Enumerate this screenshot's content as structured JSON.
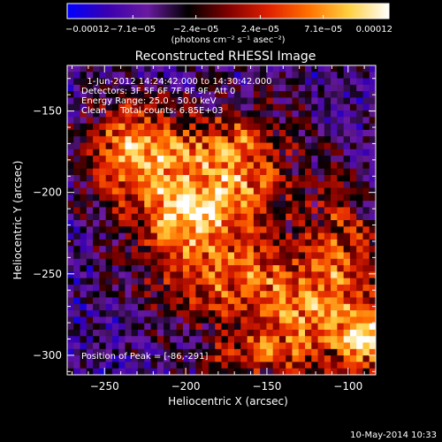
{
  "chart_data": {
    "type": "heatmap",
    "title": "Reconstructed RHESSI Image",
    "xlabel": "Heliocentric X (arcsec)",
    "ylabel": "Heliocentric Y (arcsec)",
    "xlim": [
      -273,
      -83
    ],
    "ylim": [
      -312,
      -122
    ],
    "xticks": [
      -250,
      -200,
      -150,
      -100
    ],
    "yticks": [
      -300,
      -250,
      -200,
      -150
    ],
    "x_tick_labels": [
      "−250",
      "−200",
      "−150",
      "−100"
    ],
    "y_tick_labels": [
      "−300",
      "−250",
      "−200",
      "−150"
    ],
    "colorbar": {
      "min": -0.00012,
      "max": 0.00012,
      "tick_values": [
        -0.00012,
        -7.1e-05,
        -2.4e-05,
        2.4e-05,
        7.1e-05,
        0.00012
      ],
      "tick_labels": [
        "−0.00012",
        "−7.1e−05",
        "−2.4e−05",
        "2.4e−05",
        "7.1e−05",
        "0.00012"
      ],
      "units_label": "(photons cm⁻² s⁻¹ asec⁻²)",
      "colormap": [
        "#0000ff",
        "#3a00b0",
        "#6a1aa0",
        "#000000",
        "#800000",
        "#e02000",
        "#ff7000",
        "#ffd040",
        "#ffffff"
      ]
    },
    "annotations": [
      "  1-Jun-2012 14:24:42.000 to 14:30:42.000",
      "Detectors: 3F 5F 6F 7F 8F 9F, Att 0",
      "Energy Range: 25.0 - 50.0 keV",
      "Clean     Total counts: 6.85E+03"
    ],
    "peak_label": "Position of Peak = [-86,-291]",
    "peak": [
      -86,
      -291
    ],
    "source_centers": [
      {
        "x": -212,
        "y": -185,
        "sx": 30,
        "sy": 24,
        "amp": 0.00011
      },
      {
        "x": -162,
        "y": -185,
        "sx": 20,
        "sy": 26,
        "amp": 9.5e-05
      },
      {
        "x": -200,
        "y": -215,
        "sx": 18,
        "sy": 14,
        "amp": 8e-05
      },
      {
        "x": -180,
        "y": -248,
        "sx": 34,
        "sy": 22,
        "amp": 9e-05
      },
      {
        "x": -120,
        "y": -278,
        "sx": 34,
        "sy": 26,
        "amp": 0.000105
      },
      {
        "x": -105,
        "y": -225,
        "sx": 16,
        "sy": 30,
        "amp": 7e-05
      },
      {
        "x": -236,
        "y": -170,
        "sx": 16,
        "sy": 20,
        "amp": 7e-05
      },
      {
        "x": -86,
        "y": -291,
        "sx": 10,
        "sy": 10,
        "amp": 0.00012
      },
      {
        "x": -160,
        "y": -300,
        "sx": 20,
        "sy": 8,
        "amp": 6e-05
      }
    ]
  },
  "footer_date": "10-May-2014 10:33"
}
